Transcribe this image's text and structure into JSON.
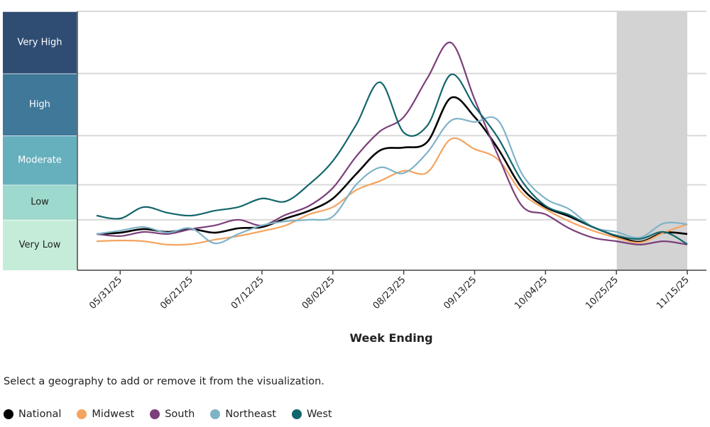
{
  "chart_data": {
    "type": "line",
    "xlabel": "Week Ending",
    "ylabel": "",
    "x_ticks": [
      "05/31/25",
      "06/21/25",
      "07/12/25",
      "08/02/25",
      "08/23/25",
      "09/13/25",
      "10/04/25",
      "10/25/25",
      "11/15/25"
    ],
    "x": [
      "05/24/25",
      "05/31/25",
      "06/07/25",
      "06/14/25",
      "06/21/25",
      "06/28/25",
      "07/05/25",
      "07/12/25",
      "07/19/25",
      "07/26/25",
      "08/02/25",
      "08/09/25",
      "08/16/25",
      "08/23/25",
      "08/30/25",
      "09/06/25",
      "09/13/25",
      "09/20/25",
      "09/27/25",
      "10/04/25",
      "10/11/25",
      "10/18/25",
      "10/25/25",
      "11/01/25",
      "11/08/25",
      "11/15/25"
    ],
    "ylim": [
      0,
      10
    ],
    "levels": [
      {
        "label": "Very Low",
        "from": 0,
        "to": 1.95,
        "color": "#c5ecd9"
      },
      {
        "label": "Low",
        "from": 1.95,
        "to": 3.3,
        "color": "#9dd9cc"
      },
      {
        "label": "Moderate",
        "from": 3.3,
        "to": 5.2,
        "color": "#66afbd"
      },
      {
        "label": "High",
        "from": 5.2,
        "to": 7.6,
        "color": "#3f7898"
      },
      {
        "label": "Very High",
        "from": 7.6,
        "to": 10,
        "color": "#2f4d73"
      }
    ],
    "shaded_range": [
      "11/01/25",
      "11/15/25"
    ],
    "series": [
      {
        "name": "National",
        "color": "#000000",
        "values": [
          1.4,
          1.45,
          1.59,
          1.48,
          1.59,
          1.45,
          1.62,
          1.67,
          2.0,
          2.3,
          2.77,
          3.73,
          4.63,
          4.74,
          4.96,
          6.66,
          5.92,
          4.68,
          3.18,
          2.44,
          2.08,
          1.67,
          1.32,
          1.1,
          1.45,
          1.4
        ]
      },
      {
        "name": "Midwest",
        "color": "#f4a460",
        "values": [
          1.12,
          1.15,
          1.12,
          0.99,
          1.01,
          1.18,
          1.32,
          1.51,
          1.73,
          2.16,
          2.44,
          3.1,
          3.45,
          3.84,
          3.78,
          5.07,
          4.68,
          4.27,
          2.99,
          2.36,
          1.89,
          1.53,
          1.26,
          1.07,
          1.45,
          1.78
        ]
      },
      {
        "name": "South",
        "color": "#7b3f7a",
        "values": [
          1.4,
          1.32,
          1.48,
          1.4,
          1.59,
          1.73,
          1.95,
          1.73,
          2.14,
          2.49,
          3.18,
          4.41,
          5.37,
          5.92,
          7.42,
          8.79,
          6.6,
          4.41,
          2.49,
          2.16,
          1.62,
          1.26,
          1.12,
          0.99,
          1.12,
          0.99
        ]
      },
      {
        "name": "Northeast",
        "color": "#7fb3c8",
        "values": [
          1.4,
          1.53,
          1.67,
          1.45,
          1.62,
          1.04,
          1.4,
          1.73,
          1.89,
          1.95,
          2.08,
          3.32,
          3.97,
          3.75,
          4.55,
          5.78,
          5.73,
          5.78,
          3.73,
          2.77,
          2.36,
          1.67,
          1.48,
          1.26,
          1.81,
          1.78
        ]
      },
      {
        "name": "West",
        "color": "#12666b",
        "values": [
          2.11,
          2.0,
          2.44,
          2.22,
          2.11,
          2.3,
          2.44,
          2.77,
          2.66,
          3.32,
          4.22,
          5.64,
          7.26,
          5.32,
          5.59,
          7.56,
          6.33,
          5.1,
          3.45,
          2.49,
          2.14,
          1.67,
          1.34,
          1.21,
          1.48,
          1.01
        ]
      }
    ]
  },
  "instructions": "Select a geography to add or remove it from the visualization."
}
